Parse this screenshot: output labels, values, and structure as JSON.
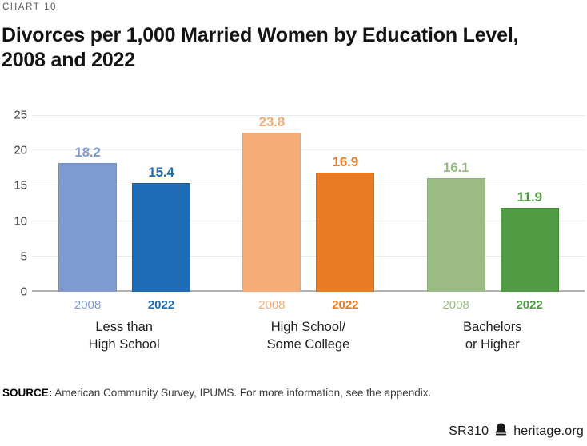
{
  "header": {
    "kicker": "CHART 10",
    "title": "Divorces per 1,000 Married Women by Education Level,\n2008 and 2022"
  },
  "chart_data": {
    "type": "bar",
    "title": "Divorces per 1,000 Married Women by Education Level, 2008 and 2022",
    "xlabel": "",
    "ylabel": "",
    "ylim": [
      0,
      25
    ],
    "yticks": [
      0,
      5,
      10,
      15,
      20,
      25
    ],
    "grid": true,
    "gridline_color": "#e9e9e9",
    "baseline_color": "#b3b3b5",
    "legend_position": "year labels below each bar",
    "categories": [
      "Less than\nHigh School",
      "High School/\nSome College",
      "Bachelors\nor Higher"
    ],
    "series": [
      {
        "name": "2008",
        "values": [
          18.2,
          23.8,
          16.1
        ]
      },
      {
        "name": "2022",
        "values": [
          15.4,
          16.9,
          11.9
        ]
      }
    ],
    "groups": [
      {
        "label": "Less than\nHigh School",
        "bars": [
          {
            "year": "2008",
            "value": "18.2",
            "color": "#7f9ad0",
            "border": "#7290ca"
          },
          {
            "year": "2022",
            "value": "15.4",
            "color": "#1e6cb5",
            "border": "#155a9c"
          }
        ]
      },
      {
        "label": "High School/\nSome College",
        "bars": [
          {
            "year": "2008",
            "value": "23.8",
            "color": "#f5ac76",
            "border": "#f2a065"
          },
          {
            "year": "2022",
            "value": "16.9",
            "color": "#e87c24",
            "border": "#da6d10"
          }
        ]
      },
      {
        "label": "Bachelors\nor Higher",
        "bars": [
          {
            "year": "2008",
            "value": "16.1",
            "color": "#9bbb84",
            "border": "#8fb175"
          },
          {
            "year": "2022",
            "value": "11.9",
            "color": "#4f9a43",
            "border": "#428a37"
          }
        ]
      }
    ]
  },
  "footer": {
    "source_label": "SOURCE:",
    "source_text": "American Community Survey, IPUMS. For more information, see the appendix.",
    "report_id": "SR310",
    "site": "heritage.org",
    "bell_icon_color": "#1a1a1a"
  }
}
